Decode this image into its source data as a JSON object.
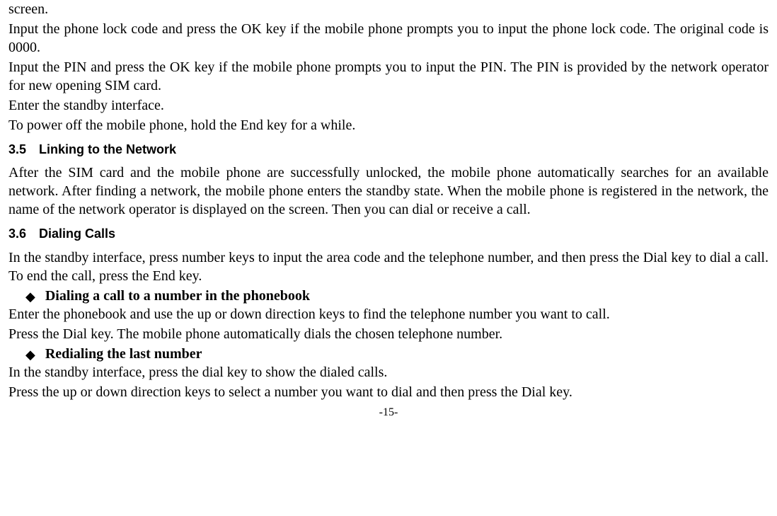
{
  "p1": "screen.",
  "p2": "Input the phone lock code and press the OK key if the mobile phone prompts you to input the phone lock code. The original code is 0000.",
  "p3": "Input the PIN and press the OK key if the mobile phone prompts you to input the PIN. The PIN is provided by the network operator for new opening SIM card.",
  "p4": "Enter the standby interface.",
  "p5": "To power off the mobile phone, hold the End key for a while.",
  "h1": "3.5 Linking to the Network",
  "p6": "After the SIM card and the mobile phone are successfully unlocked, the mobile phone automatically searches for an available network. After finding a network, the mobile phone enters the standby state. When the mobile phone is registered in the network, the name of the network operator is displayed on the screen. Then you can dial or receive a call.",
  "h2": "3.6 Dialing Calls",
  "p7": "In the standby interface, press number keys to input the area code and the telephone number, and then press the Dial key to dial a call. To end the call, press the End key.",
  "b1": "Dialing a call to a number in the phonebook",
  "p8": "Enter the phonebook and use the up or down direction keys to find the telephone number you want to call.",
  "p9": "Press the Dial key. The mobile phone automatically dials the chosen telephone number.",
  "b2": "Redialing the last number",
  "p10": "In the standby interface, press the dial key to show the dialed calls.",
  "p11": "Press the up or down direction keys to select a number you want to dial and then press the Dial key.",
  "pagenum": "-15-",
  "diamond": "◆"
}
